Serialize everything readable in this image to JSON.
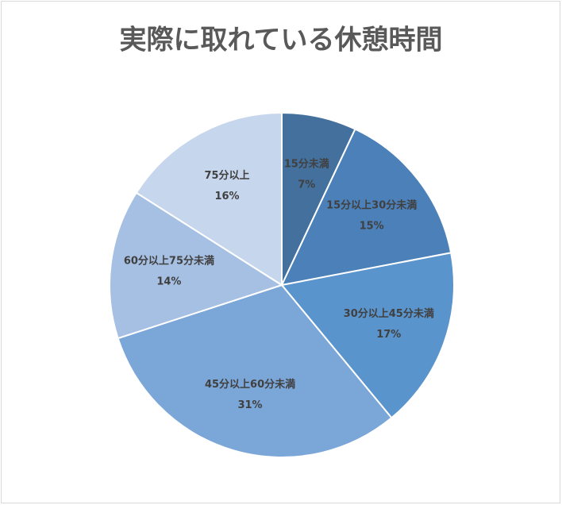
{
  "chart_data": {
    "type": "pie",
    "title": "実際に取れている休憩時間",
    "categories": [
      "15分未満",
      "15分以上30分未満",
      "30分以上45分未満",
      "45分以上60分未満",
      "60分以上75分未満",
      "75分以上"
    ],
    "values": [
      7,
      15,
      17,
      31,
      14,
      16
    ],
    "value_labels": [
      "7%",
      "15%",
      "17%",
      "31%",
      "14%",
      "16%"
    ],
    "colors": [
      "#44709e",
      "#4b80b9",
      "#5a94cc",
      "#7ba6d8",
      "#a6c0e3",
      "#c6d6ec"
    ]
  }
}
